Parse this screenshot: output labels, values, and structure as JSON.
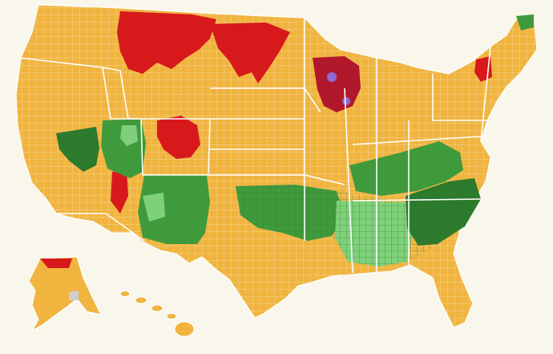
{
  "map": {
    "background": "#f9f6ec",
    "boundary_color": "#ffffff",
    "county_line_color": "#f3dca2",
    "legend_colors": {
      "orange": "#f0b43f",
      "light_orange": "#f4c25e",
      "red": "#d7191c",
      "dark_red": "#b2182b",
      "green": "#3f9a3b",
      "dark_green": "#2c7a2c",
      "light_green": "#7fd07a",
      "purple": "#8e6bd6",
      "gray": "#cfcfcf"
    },
    "regions": [
      {
        "name": "contiguous-us",
        "color_key": "orange"
      },
      {
        "name": "alaska",
        "color_key": "orange"
      },
      {
        "name": "hawaii",
        "color_key": "orange"
      }
    ],
    "overlays": [
      {
        "name": "montana-red-belt",
        "color_key": "red"
      },
      {
        "name": "dakotas-red-belt",
        "color_key": "red"
      },
      {
        "name": "wisconsin-red",
        "color_key": "dark_red"
      },
      {
        "name": "wisconsin-purple",
        "color_key": "purple"
      },
      {
        "name": "colorado-wyoming-red",
        "color_key": "red"
      },
      {
        "name": "nevada-green",
        "color_key": "dark_green"
      },
      {
        "name": "utah-green",
        "color_key": "green"
      },
      {
        "name": "utah-light-green",
        "color_key": "light_green"
      },
      {
        "name": "new-mexico-green",
        "color_key": "green"
      },
      {
        "name": "oklahoma-arkansas-green",
        "color_key": "green"
      },
      {
        "name": "mississippi-alabama-green",
        "color_key": "light_green"
      },
      {
        "name": "tennessee-kentucky-green",
        "color_key": "green"
      },
      {
        "name": "carolina-green",
        "color_key": "dark_green"
      },
      {
        "name": "new-england-red",
        "color_key": "red"
      },
      {
        "name": "maine-green",
        "color_key": "green"
      },
      {
        "name": "alaska-red",
        "color_key": "red"
      },
      {
        "name": "alaska-gray",
        "color_key": "gray"
      },
      {
        "name": "california-red",
        "color_key": "red"
      }
    ]
  }
}
